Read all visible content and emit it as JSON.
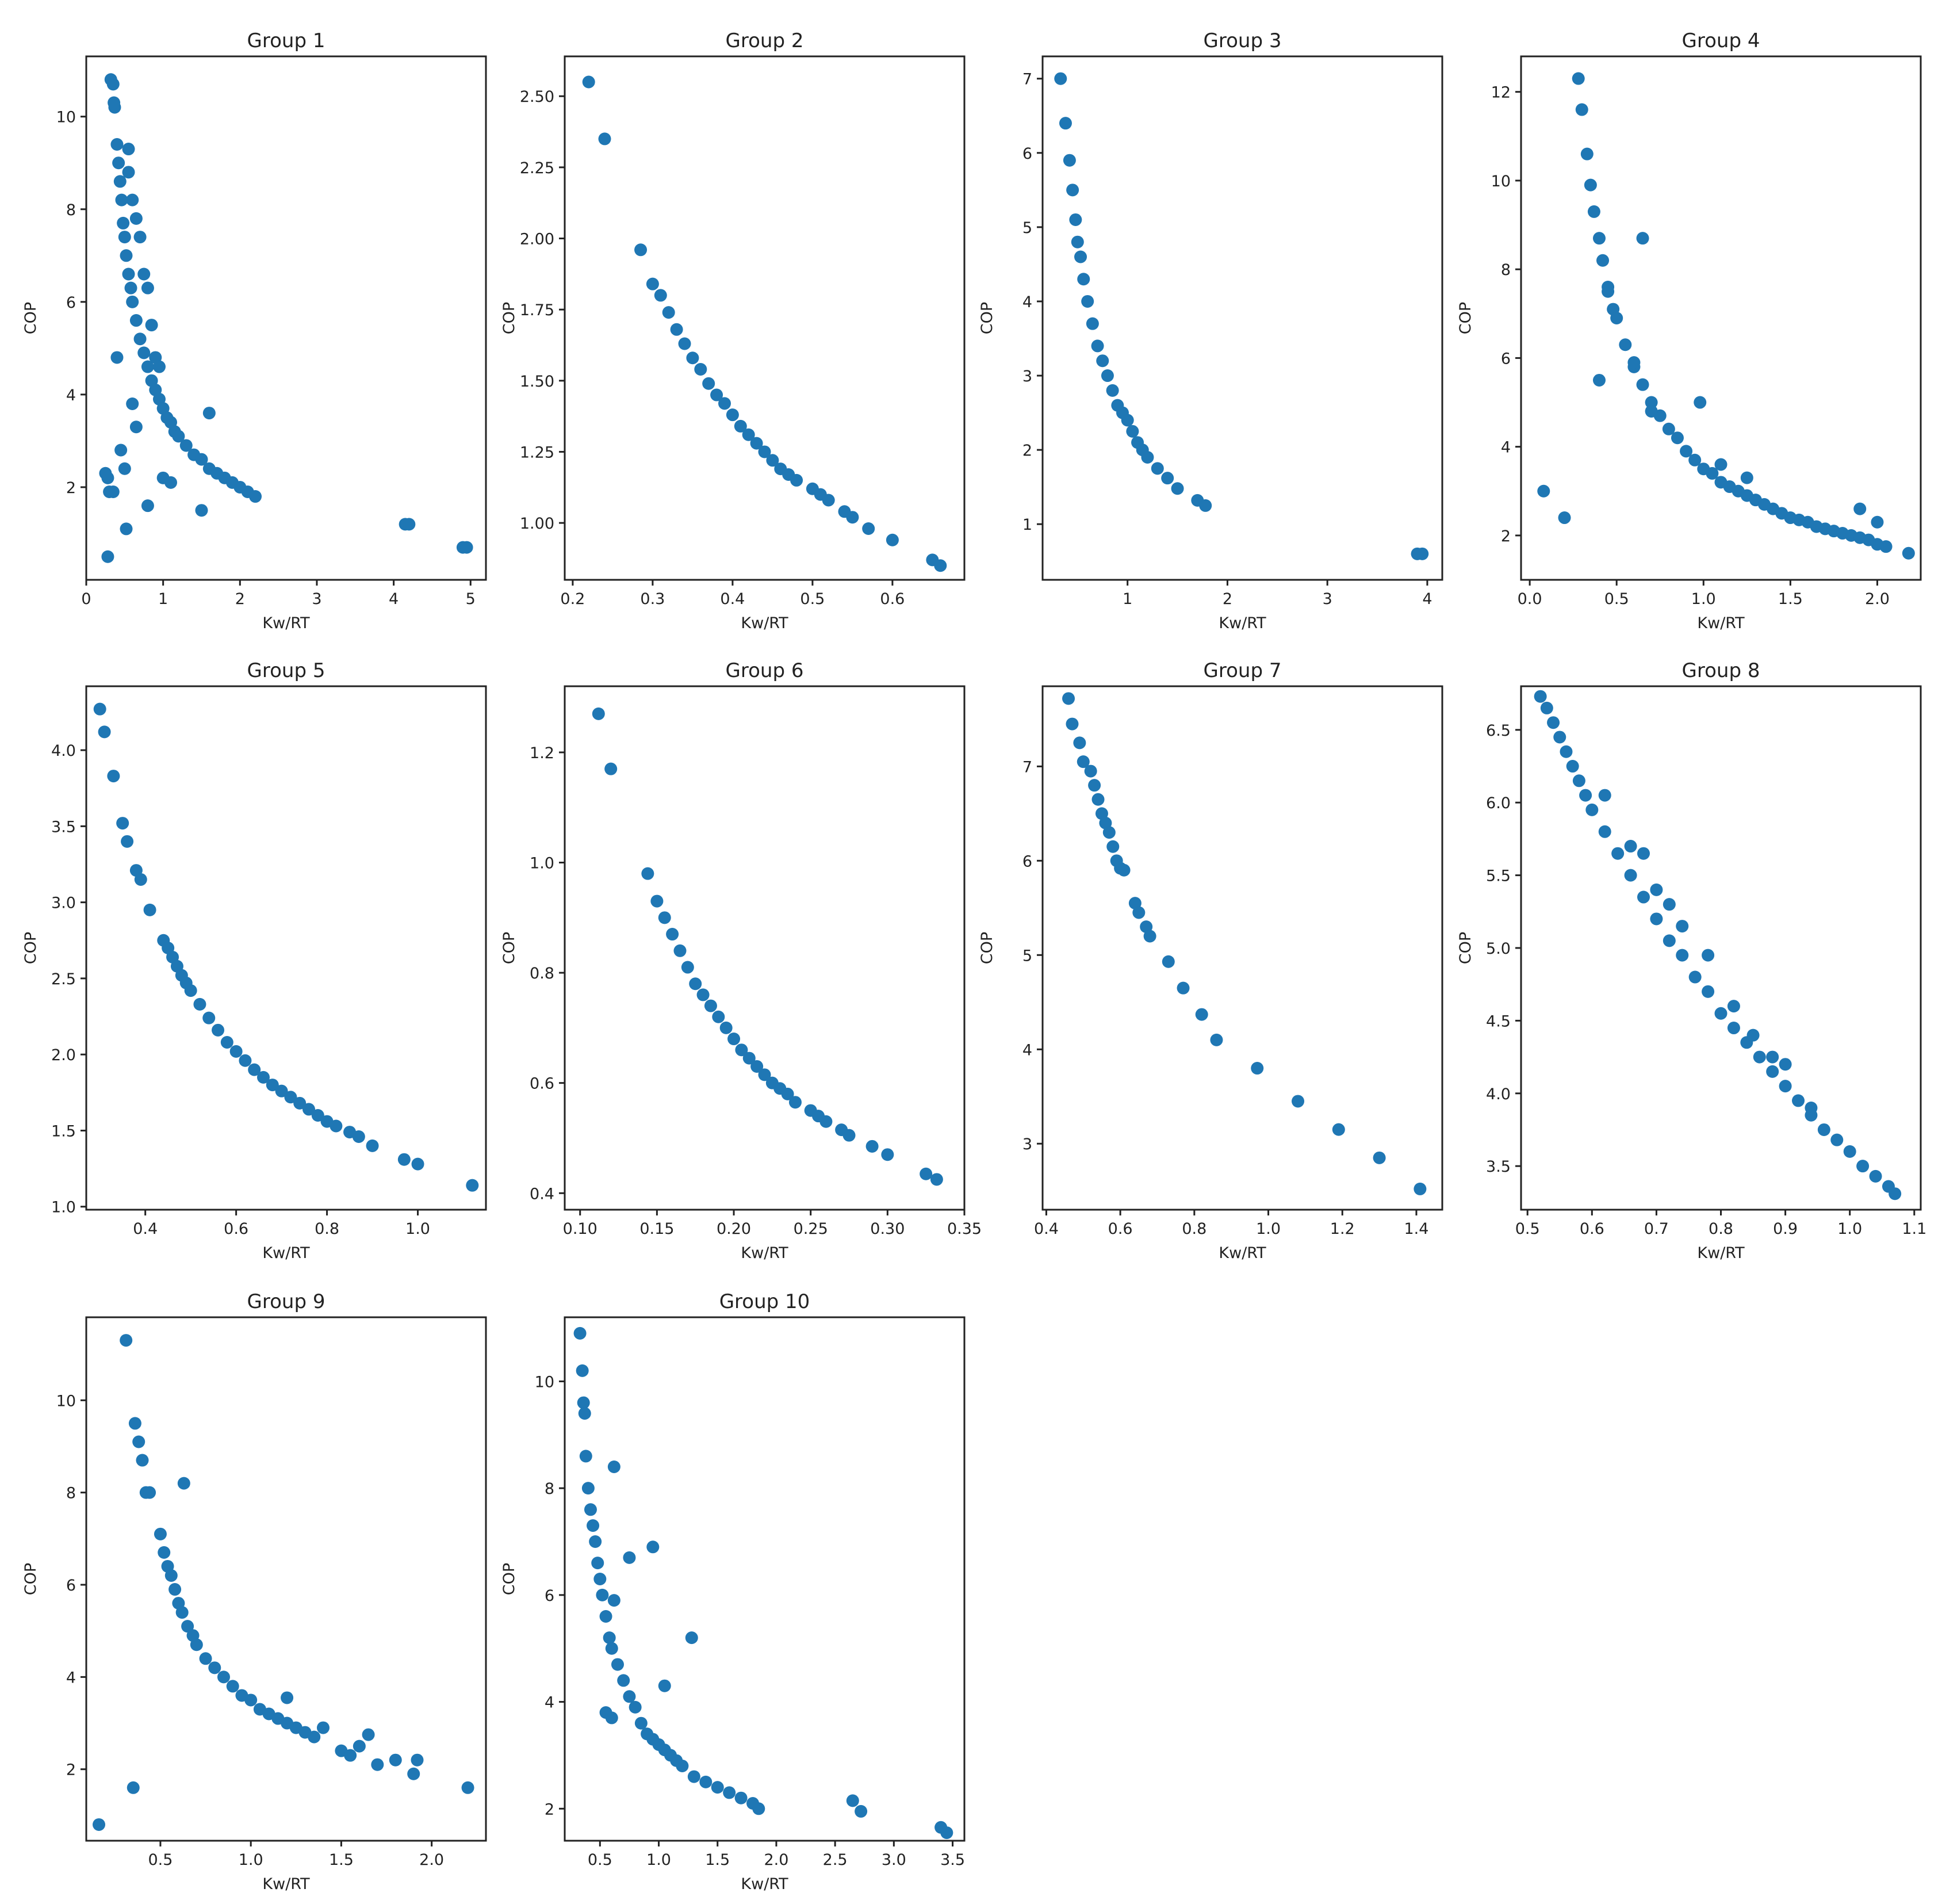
{
  "figure": {
    "background": "#ffffff",
    "marker_color": "#1f77b4"
  },
  "chart_data": [
    {
      "type": "scatter",
      "title": "Group 1",
      "xlabel": "Kw/RT",
      "ylabel": "COP",
      "xlim": [
        0,
        5.2
      ],
      "ylim": [
        0,
        11.3
      ],
      "xticks": [
        0,
        1,
        2,
        3,
        4,
        5
      ],
      "yticks": [
        2,
        4,
        6,
        8,
        10
      ],
      "series": [
        {
          "x": [
            0.32,
            0.35,
            0.37,
            0.36,
            0.4,
            0.42,
            0.44,
            0.46,
            0.48,
            0.5,
            0.52,
            0.55,
            0.58,
            0.6,
            0.65,
            0.7,
            0.75,
            0.8,
            0.85,
            0.9,
            0.95,
            1.0,
            1.05,
            1.1,
            1.15,
            1.2,
            1.3,
            1.4,
            1.5,
            1.6,
            1.7,
            1.8,
            1.9,
            2.0,
            2.1,
            2.2,
            0.55,
            0.6,
            0.65,
            0.75,
            0.8,
            0.55,
            0.9,
            0.7,
            0.85,
            0.95,
            1.6,
            0.4,
            0.6,
            0.65,
            0.25,
            0.28,
            0.3,
            0.35,
            0.45,
            0.5,
            0.8,
            1.0,
            1.1,
            1.5,
            0.52,
            0.28,
            4.15,
            4.2,
            4.9,
            4.95
          ],
          "y": [
            10.8,
            10.7,
            10.2,
            10.3,
            9.4,
            9.0,
            8.6,
            8.2,
            7.7,
            7.4,
            7.0,
            6.6,
            6.3,
            6.0,
            5.6,
            5.2,
            4.9,
            4.6,
            4.3,
            4.1,
            3.9,
            3.7,
            3.5,
            3.4,
            3.2,
            3.1,
            2.9,
            2.7,
            2.6,
            2.4,
            2.3,
            2.2,
            2.1,
            2.0,
            1.9,
            1.8,
            9.3,
            8.2,
            7.8,
            6.6,
            6.3,
            8.8,
            4.8,
            7.4,
            5.5,
            4.6,
            3.6,
            4.8,
            3.8,
            3.3,
            2.3,
            2.2,
            1.9,
            1.9,
            2.8,
            2.4,
            1.6,
            2.2,
            2.1,
            1.5,
            1.1,
            0.5,
            1.2,
            1.2,
            0.7,
            0.7
          ]
        }
      ]
    },
    {
      "type": "scatter",
      "title": "Group 2",
      "xlabel": "Kw/RT",
      "ylabel": "COP",
      "xlim": [
        0.19,
        0.69
      ],
      "ylim": [
        0.8,
        2.64
      ],
      "xticks": [
        0.2,
        0.3,
        0.4,
        0.5,
        0.6
      ],
      "yticks": [
        1.0,
        1.25,
        1.5,
        1.75,
        2.0,
        2.25,
        2.5
      ],
      "series": [
        {
          "x": [
            0.22,
            0.24,
            0.285,
            0.3,
            0.31,
            0.32,
            0.33,
            0.34,
            0.35,
            0.36,
            0.37,
            0.38,
            0.39,
            0.4,
            0.41,
            0.42,
            0.43,
            0.44,
            0.45,
            0.46,
            0.47,
            0.48,
            0.5,
            0.51,
            0.52,
            0.54,
            0.55,
            0.57,
            0.6,
            0.65,
            0.66
          ],
          "y": [
            2.55,
            2.35,
            1.96,
            1.84,
            1.8,
            1.74,
            1.68,
            1.63,
            1.58,
            1.54,
            1.49,
            1.45,
            1.42,
            1.38,
            1.34,
            1.31,
            1.28,
            1.25,
            1.22,
            1.19,
            1.17,
            1.15,
            1.12,
            1.1,
            1.08,
            1.04,
            1.02,
            0.98,
            0.94,
            0.87,
            0.85
          ]
        }
      ]
    },
    {
      "type": "scatter",
      "title": "Group 3",
      "xlabel": "Kw/RT",
      "ylabel": "COP",
      "xlim": [
        0.15,
        4.15
      ],
      "ylim": [
        0.25,
        7.3
      ],
      "xticks": [
        1,
        2,
        3,
        4
      ],
      "yticks": [
        1,
        2,
        3,
        4,
        5,
        6,
        7
      ],
      "series": [
        {
          "x": [
            0.33,
            0.38,
            0.42,
            0.45,
            0.48,
            0.5,
            0.53,
            0.56,
            0.6,
            0.65,
            0.7,
            0.75,
            0.8,
            0.85,
            0.9,
            0.95,
            1.0,
            1.05,
            1.1,
            1.15,
            1.2,
            1.3,
            1.4,
            1.5,
            1.7,
            1.78,
            3.9,
            3.95
          ],
          "y": [
            7.0,
            6.4,
            5.9,
            5.5,
            5.1,
            4.8,
            4.6,
            4.3,
            4.0,
            3.7,
            3.4,
            3.2,
            3.0,
            2.8,
            2.6,
            2.5,
            2.4,
            2.25,
            2.1,
            2.0,
            1.9,
            1.75,
            1.62,
            1.48,
            1.32,
            1.25,
            0.6,
            0.6
          ]
        }
      ]
    },
    {
      "type": "scatter",
      "title": "Group 4",
      "xlabel": "Kw/RT",
      "ylabel": "COP",
      "xlim": [
        -0.05,
        2.25
      ],
      "ylim": [
        1.0,
        12.8
      ],
      "xticks": [
        0.0,
        0.5,
        1.0,
        1.5,
        2.0
      ],
      "yticks": [
        2,
        4,
        6,
        8,
        10,
        12
      ],
      "series": [
        {
          "x": [
            0.28,
            0.3,
            0.33,
            0.35,
            0.37,
            0.4,
            0.42,
            0.45,
            0.48,
            0.5,
            0.55,
            0.6,
            0.65,
            0.7,
            0.75,
            0.8,
            0.85,
            0.9,
            0.95,
            1.0,
            1.05,
            1.1,
            1.15,
            1.2,
            1.25,
            1.3,
            1.35,
            1.4,
            1.45,
            1.5,
            1.55,
            1.6,
            1.65,
            1.7,
            1.75,
            1.8,
            1.85,
            1.9,
            1.95,
            2.0,
            2.05,
            2.18,
            0.65,
            0.98,
            1.25,
            1.9,
            2.0,
            0.08,
            0.2,
            0.4,
            0.45,
            0.6,
            0.7,
            1.1
          ],
          "y": [
            12.3,
            11.6,
            10.6,
            9.9,
            9.3,
            8.7,
            8.2,
            7.6,
            7.1,
            6.9,
            6.3,
            5.8,
            5.4,
            5.0,
            4.7,
            4.4,
            4.2,
            3.9,
            3.7,
            3.5,
            3.4,
            3.2,
            3.1,
            3.0,
            2.9,
            2.8,
            2.7,
            2.6,
            2.5,
            2.4,
            2.35,
            2.3,
            2.2,
            2.15,
            2.1,
            2.05,
            2.0,
            1.95,
            1.9,
            1.8,
            1.75,
            1.6,
            8.7,
            5.0,
            3.3,
            2.6,
            2.3,
            3.0,
            2.4,
            5.5,
            7.5,
            5.9,
            4.8,
            3.6
          ]
        }
      ]
    },
    {
      "type": "scatter",
      "title": "Group 5",
      "xlabel": "Kw/RT",
      "ylabel": "COP",
      "xlim": [
        0.27,
        1.15
      ],
      "ylim": [
        0.98,
        4.42
      ],
      "xticks": [
        0.4,
        0.6,
        0.8,
        1.0
      ],
      "yticks": [
        1.0,
        1.5,
        2.0,
        2.5,
        3.0,
        3.5,
        4.0
      ],
      "series": [
        {
          "x": [
            0.3,
            0.31,
            0.33,
            0.35,
            0.36,
            0.38,
            0.39,
            0.41,
            0.44,
            0.45,
            0.46,
            0.47,
            0.48,
            0.49,
            0.5,
            0.52,
            0.54,
            0.56,
            0.58,
            0.6,
            0.62,
            0.64,
            0.66,
            0.68,
            0.7,
            0.72,
            0.74,
            0.76,
            0.78,
            0.8,
            0.82,
            0.85,
            0.87,
            0.9,
            0.97,
            1.0,
            1.12
          ],
          "y": [
            4.27,
            4.12,
            3.83,
            3.52,
            3.4,
            3.21,
            3.15,
            2.95,
            2.75,
            2.7,
            2.64,
            2.58,
            2.52,
            2.47,
            2.42,
            2.33,
            2.24,
            2.16,
            2.08,
            2.02,
            1.96,
            1.9,
            1.85,
            1.8,
            1.76,
            1.72,
            1.68,
            1.64,
            1.6,
            1.56,
            1.53,
            1.49,
            1.46,
            1.4,
            1.31,
            1.28,
            1.14
          ]
        }
      ]
    },
    {
      "type": "scatter",
      "title": "Group 6",
      "xlabel": "Kw/RT",
      "ylabel": "COP",
      "xlim": [
        0.09,
        0.35
      ],
      "ylim": [
        0.37,
        1.32
      ],
      "xticks": [
        0.1,
        0.15,
        0.2,
        0.25,
        0.3,
        0.35
      ],
      "yticks": [
        0.4,
        0.6,
        0.8,
        1.0,
        1.2
      ],
      "series": [
        {
          "x": [
            0.112,
            0.12,
            0.144,
            0.15,
            0.155,
            0.16,
            0.165,
            0.17,
            0.175,
            0.18,
            0.185,
            0.19,
            0.195,
            0.2,
            0.205,
            0.21,
            0.215,
            0.22,
            0.225,
            0.23,
            0.235,
            0.24,
            0.25,
            0.255,
            0.26,
            0.27,
            0.275,
            0.29,
            0.3,
            0.325,
            0.332
          ],
          "y": [
            1.27,
            1.17,
            0.98,
            0.93,
            0.9,
            0.87,
            0.84,
            0.81,
            0.78,
            0.76,
            0.74,
            0.72,
            0.7,
            0.68,
            0.66,
            0.645,
            0.63,
            0.615,
            0.6,
            0.59,
            0.58,
            0.565,
            0.55,
            0.54,
            0.53,
            0.515,
            0.505,
            0.485,
            0.47,
            0.435,
            0.425
          ]
        }
      ]
    },
    {
      "type": "scatter",
      "title": "Group 7",
      "xlabel": "Kw/RT",
      "ylabel": "COP",
      "xlim": [
        0.39,
        1.47
      ],
      "ylim": [
        2.3,
        7.85
      ],
      "xticks": [
        0.4,
        0.6,
        0.8,
        1.0,
        1.2,
        1.4
      ],
      "yticks": [
        3,
        4,
        5,
        6,
        7
      ],
      "series": [
        {
          "x": [
            0.46,
            0.47,
            0.49,
            0.5,
            0.52,
            0.53,
            0.54,
            0.55,
            0.56,
            0.57,
            0.58,
            0.59,
            0.6,
            0.61,
            0.64,
            0.65,
            0.67,
            0.68,
            0.73,
            0.77,
            0.82,
            0.86,
            0.97,
            1.08,
            1.19,
            1.3,
            1.41
          ],
          "y": [
            7.72,
            7.45,
            7.25,
            7.05,
            6.95,
            6.8,
            6.65,
            6.5,
            6.4,
            6.3,
            6.15,
            6.0,
            5.92,
            5.9,
            5.55,
            5.45,
            5.3,
            5.2,
            4.93,
            4.65,
            4.37,
            4.1,
            3.8,
            3.45,
            3.15,
            2.85,
            2.52
          ]
        }
      ]
    },
    {
      "type": "scatter",
      "title": "Group 8",
      "xlabel": "Kw/RT",
      "ylabel": "COP",
      "xlim": [
        0.49,
        1.11
      ],
      "ylim": [
        3.2,
        6.8
      ],
      "xticks": [
        0.5,
        0.6,
        0.7,
        0.8,
        0.9,
        1.0,
        1.1
      ],
      "yticks": [
        3.5,
        4.0,
        4.5,
        5.0,
        5.5,
        6.0,
        6.5
      ],
      "series": [
        {
          "x": [
            0.52,
            0.53,
            0.54,
            0.55,
            0.56,
            0.57,
            0.58,
            0.59,
            0.6,
            0.62,
            0.64,
            0.66,
            0.68,
            0.7,
            0.72,
            0.74,
            0.76,
            0.78,
            0.8,
            0.82,
            0.84,
            0.86,
            0.88,
            0.9,
            0.92,
            0.94,
            0.96,
            0.98,
            1.0,
            1.02,
            1.04,
            1.06,
            1.07,
            0.62,
            0.66,
            0.7,
            0.74,
            0.78,
            0.82,
            0.85,
            0.88,
            0.9,
            0.94,
            0.68,
            0.72
          ],
          "y": [
            6.73,
            6.65,
            6.55,
            6.45,
            6.35,
            6.25,
            6.15,
            6.05,
            5.95,
            5.8,
            5.65,
            5.5,
            5.35,
            5.2,
            5.05,
            4.95,
            4.8,
            4.7,
            4.55,
            4.45,
            4.35,
            4.25,
            4.15,
            4.05,
            3.95,
            3.85,
            3.75,
            3.68,
            3.6,
            3.5,
            3.43,
            3.36,
            3.31,
            6.05,
            5.7,
            5.4,
            5.15,
            4.95,
            4.6,
            4.4,
            4.25,
            4.2,
            3.9,
            5.65,
            5.3
          ]
        }
      ]
    },
    {
      "type": "scatter",
      "title": "Group 9",
      "xlabel": "Kw/RT",
      "ylabel": "COP",
      "xlim": [
        0.09,
        2.3
      ],
      "ylim": [
        0.45,
        11.8
      ],
      "xticks": [
        0.5,
        1.0,
        1.5,
        2.0
      ],
      "yticks": [
        2,
        4,
        6,
        8,
        10
      ],
      "series": [
        {
          "x": [
            0.31,
            0.36,
            0.38,
            0.4,
            0.42,
            0.44,
            0.5,
            0.52,
            0.54,
            0.56,
            0.58,
            0.6,
            0.62,
            0.65,
            0.68,
            0.7,
            0.75,
            0.8,
            0.85,
            0.9,
            0.95,
            1.0,
            1.05,
            1.1,
            1.15,
            1.2,
            1.25,
            1.3,
            1.35,
            1.4,
            1.5,
            1.55,
            1.6,
            1.65,
            1.7,
            1.8,
            1.9,
            1.92,
            2.2,
            0.63,
            1.2,
            0.16,
            0.35
          ],
          "y": [
            11.3,
            9.5,
            9.1,
            8.7,
            8.0,
            8.0,
            7.1,
            6.7,
            6.4,
            6.2,
            5.9,
            5.6,
            5.4,
            5.1,
            4.9,
            4.7,
            4.4,
            4.2,
            4.0,
            3.8,
            3.6,
            3.5,
            3.3,
            3.2,
            3.1,
            3.0,
            2.9,
            2.8,
            2.7,
            2.9,
            2.4,
            2.3,
            2.5,
            2.75,
            2.1,
            2.2,
            1.9,
            2.2,
            1.6,
            8.2,
            3.55,
            0.8,
            1.6
          ]
        }
      ]
    },
    {
      "type": "scatter",
      "title": "Group 10",
      "xlabel": "Kw/RT",
      "ylabel": "COP",
      "xlim": [
        0.2,
        3.6
      ],
      "ylim": [
        1.4,
        11.2
      ],
      "xticks": [
        0.5,
        1.0,
        1.5,
        2.0,
        2.5,
        3.0,
        3.5
      ],
      "yticks": [
        2,
        4,
        6,
        8,
        10
      ],
      "series": [
        {
          "x": [
            0.33,
            0.35,
            0.36,
            0.37,
            0.38,
            0.4,
            0.42,
            0.44,
            0.46,
            0.48,
            0.5,
            0.52,
            0.55,
            0.58,
            0.6,
            0.65,
            0.7,
            0.75,
            0.8,
            0.85,
            0.9,
            0.95,
            1.0,
            1.05,
            1.1,
            1.15,
            1.2,
            1.3,
            1.4,
            1.5,
            1.6,
            1.7,
            1.8,
            1.85,
            0.62,
            0.75,
            0.95,
            1.28,
            1.05,
            0.6,
            0.55,
            0.62,
            2.65,
            2.72,
            3.4,
            3.45
          ],
          "y": [
            10.9,
            10.2,
            9.6,
            9.4,
            8.6,
            8.0,
            7.6,
            7.3,
            7.0,
            6.6,
            6.3,
            6.0,
            5.6,
            5.2,
            5.0,
            4.7,
            4.4,
            4.1,
            3.9,
            3.6,
            3.4,
            3.3,
            3.2,
            3.1,
            3.0,
            2.9,
            2.8,
            2.6,
            2.5,
            2.4,
            2.3,
            2.2,
            2.1,
            2.0,
            8.4,
            6.7,
            6.9,
            5.2,
            4.3,
            3.7,
            3.8,
            5.9,
            2.15,
            1.95,
            1.65,
            1.55
          ]
        }
      ]
    }
  ]
}
